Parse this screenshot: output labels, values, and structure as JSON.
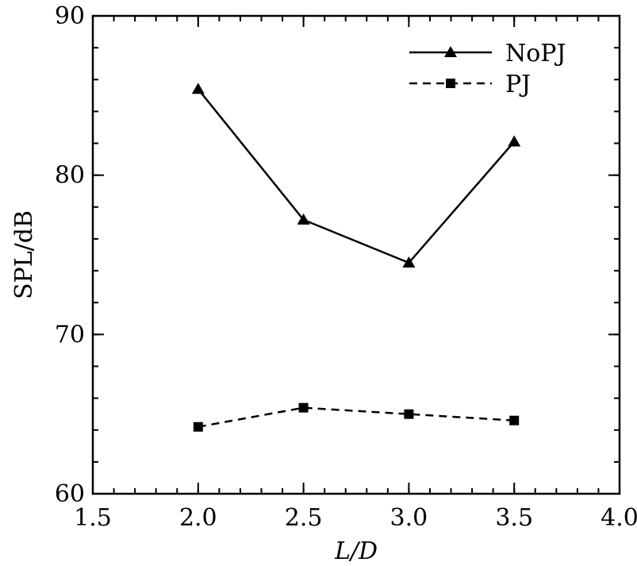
{
  "chart_data": {
    "type": "line",
    "title": "",
    "xlabel": "L/D",
    "ylabel": "SPL/dB",
    "xlim": [
      1.5,
      4.0
    ],
    "ylim": [
      60,
      90
    ],
    "x_ticks": [
      1.5,
      2.0,
      2.5,
      3.0,
      3.5,
      4.0
    ],
    "x_tick_labels": [
      "1.5",
      "2.0",
      "2.5",
      "3.0",
      "3.5",
      "4.0"
    ],
    "y_ticks": [
      60,
      70,
      80,
      90
    ],
    "y_tick_labels": [
      "60",
      "70",
      "80",
      "90"
    ],
    "grid": false,
    "legend_position": "top-right",
    "series": [
      {
        "name": "NoPJ",
        "marker": "triangle",
        "line_style": "solid",
        "color": "#000000",
        "x": [
          2.0,
          2.5,
          3.0,
          3.5
        ],
        "values": [
          85.4,
          77.2,
          74.5,
          82.1
        ]
      },
      {
        "name": "PJ",
        "marker": "square",
        "line_style": "dashed",
        "color": "#000000",
        "x": [
          2.0,
          2.5,
          3.0,
          3.5
        ],
        "values": [
          64.2,
          65.4,
          65.0,
          64.6
        ]
      }
    ]
  }
}
